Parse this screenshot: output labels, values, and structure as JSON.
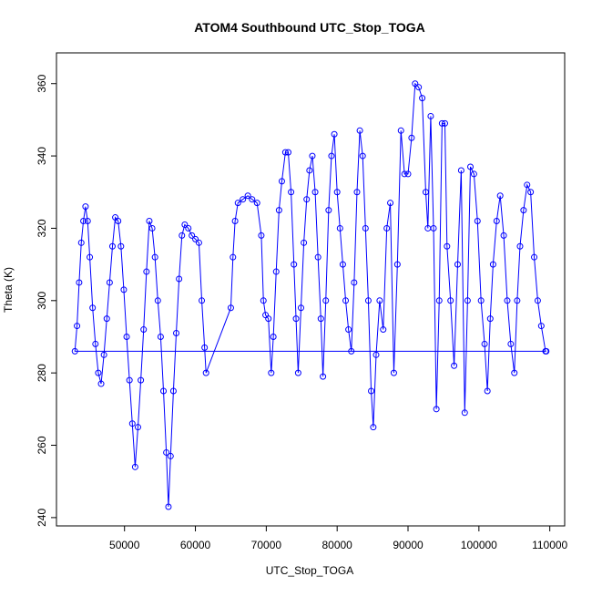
{
  "chart_data": {
    "type": "line",
    "title": "ATOM4 Southbound UTC_Stop_TOGA",
    "x_label": "UTC_Stop_TOGA",
    "y_label": "Theta (K)",
    "color": "#0000ff",
    "markers": true,
    "x": [
      109500,
      43000,
      43300,
      43600,
      43900,
      44200,
      44500,
      44800,
      45100,
      45500,
      45900,
      46300,
      46700,
      47100,
      47500,
      47900,
      48300,
      48700,
      49100,
      49500,
      49900,
      50300,
      50700,
      51100,
      51500,
      51900,
      52300,
      52700,
      53100,
      53500,
      53900,
      54300,
      54700,
      55100,
      55500,
      55900,
      56200,
      56500,
      56900,
      57300,
      57700,
      58100,
      58500,
      59000,
      59500,
      60000,
      60500,
      60900,
      61300,
      61500,
      65000,
      65300,
      65600,
      66000,
      66700,
      67400,
      68000,
      68700,
      69300,
      69600,
      69900,
      70300,
      70700,
      71000,
      71400,
      71800,
      72200,
      72700,
      73100,
      73500,
      73900,
      74200,
      74500,
      74900,
      75300,
      75700,
      76100,
      76500,
      76900,
      77300,
      77700,
      78000,
      78400,
      78800,
      79200,
      79600,
      80000,
      80400,
      80800,
      81200,
      81600,
      82000,
      82400,
      82800,
      83200,
      83600,
      84000,
      84400,
      84800,
      85100,
      85500,
      86000,
      86500,
      87000,
      87500,
      88000,
      88500,
      89000,
      89500,
      90000,
      90500,
      91000,
      91500,
      92000,
      92500,
      92800,
      93200,
      93600,
      94000,
      94400,
      94800,
      95200,
      95500,
      96000,
      96500,
      97000,
      97500,
      98000,
      98400,
      98800,
      99300,
      99800,
      100300,
      100800,
      101200,
      101600,
      102000,
      102500,
      103000,
      103500,
      104000,
      104500,
      105000,
      105400,
      105800,
      106300,
      106800,
      107300,
      107800,
      108300,
      108800,
      109400
    ],
    "y": [
      286,
      286,
      293,
      305,
      316,
      322,
      326,
      322,
      312,
      298,
      288,
      280,
      277,
      285,
      295,
      305,
      315,
      323,
      322,
      315,
      303,
      290,
      278,
      266,
      254,
      265,
      278,
      292,
      308,
      322,
      320,
      312,
      300,
      290,
      275,
      258,
      243,
      257,
      275,
      291,
      306,
      318,
      321,
      320,
      318,
      317,
      316,
      300,
      287,
      280,
      298,
      312,
      322,
      327,
      328,
      329,
      328,
      327,
      318,
      300,
      296,
      295,
      280,
      290,
      308,
      325,
      333,
      341,
      341,
      330,
      310,
      295,
      280,
      298,
      316,
      328,
      336,
      340,
      330,
      312,
      295,
      279,
      300,
      325,
      340,
      346,
      330,
      320,
      310,
      300,
      292,
      286,
      305,
      330,
      347,
      340,
      320,
      300,
      275,
      265,
      285,
      300,
      292,
      320,
      327,
      280,
      310,
      347,
      335,
      335,
      345,
      360,
      359,
      356,
      330,
      320,
      351,
      320,
      270,
      300,
      349,
      349,
      315,
      300,
      282,
      310,
      336,
      269,
      300,
      337,
      335,
      322,
      300,
      288,
      275,
      295,
      310,
      322,
      329,
      318,
      300,
      288,
      280,
      300,
      315,
      325,
      332,
      330,
      312,
      300,
      293,
      286
    ],
    "xlim": [
      40400,
      112100
    ],
    "ylim": [
      237.7,
      368.5
    ],
    "xticks": [
      50000,
      60000,
      70000,
      80000,
      90000,
      100000,
      110000
    ],
    "yticks": [
      240,
      260,
      280,
      300,
      320,
      340,
      360
    ]
  }
}
